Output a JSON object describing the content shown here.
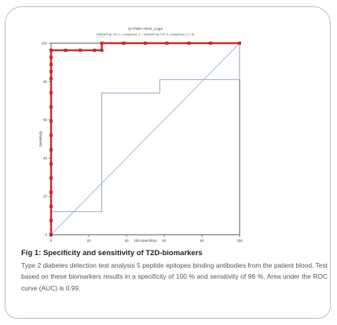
{
  "caption": {
    "title": "Fig 1: Specificity and sensitivity of T2D-biomarkers",
    "body": "Type 2 diabetes detection test analysis 5 peptide epitopes binding antibodies from the patient blood. Test based on these biomarkers results in a specificity of 100 % and sensitivity of 96 %. Area under the ROC curve (AUC) is 0.99."
  },
  "colors": {
    "roc_main": "#cc2a2a",
    "roc_alt": "#8aa0c4",
    "diagonal": "#9ab3d6",
    "axis": "#333333"
  },
  "chart_data": {
    "type": "line",
    "title": "Q+PSD+Ab42_Log4",
    "subtitle": "AntiDiabTrap T2D_IL_UnsigSmrse_1_+ AntiDiabTrap T2D_IL_UnsigSmrse_3_+ Ist",
    "xlabel": "100-Specificity",
    "ylabel": "Sensitivity",
    "xlim": [
      0,
      100
    ],
    "ylim": [
      0,
      100
    ],
    "xticks": [
      "0",
      "20",
      "40",
      "60",
      "80",
      "100"
    ],
    "yticks": [
      "0",
      "20",
      "40",
      "60",
      "80",
      "100"
    ],
    "grid": false,
    "legend": "none",
    "series": [
      {
        "style": "solid-markers",
        "x": [
          0,
          0,
          0,
          0,
          0,
          0,
          0,
          0,
          0,
          0,
          0,
          0,
          0,
          0,
          0,
          0,
          7.7,
          15.4,
          23.1,
          26.9,
          26.9,
          38.5,
          50,
          61.5,
          73.1,
          84.6,
          100
        ],
        "y": [
          0,
          7.4,
          14.8,
          22.2,
          29.6,
          37,
          44.4,
          51.9,
          59.3,
          66.7,
          74.1,
          81.5,
          85.2,
          88.9,
          92.6,
          96.3,
          96.3,
          96.3,
          96.3,
          96.3,
          100,
          100,
          100,
          100,
          100,
          100,
          100
        ]
      },
      {
        "style": "thin-step",
        "x": [
          0,
          0,
          26.9,
          26.9,
          57.7,
          57.7,
          100,
          100
        ],
        "y": [
          0,
          12,
          12,
          74,
          74,
          81,
          81,
          100
        ]
      },
      {
        "style": "diagonal",
        "x": [
          0,
          100
        ],
        "y": [
          0,
          100
        ]
      }
    ]
  }
}
